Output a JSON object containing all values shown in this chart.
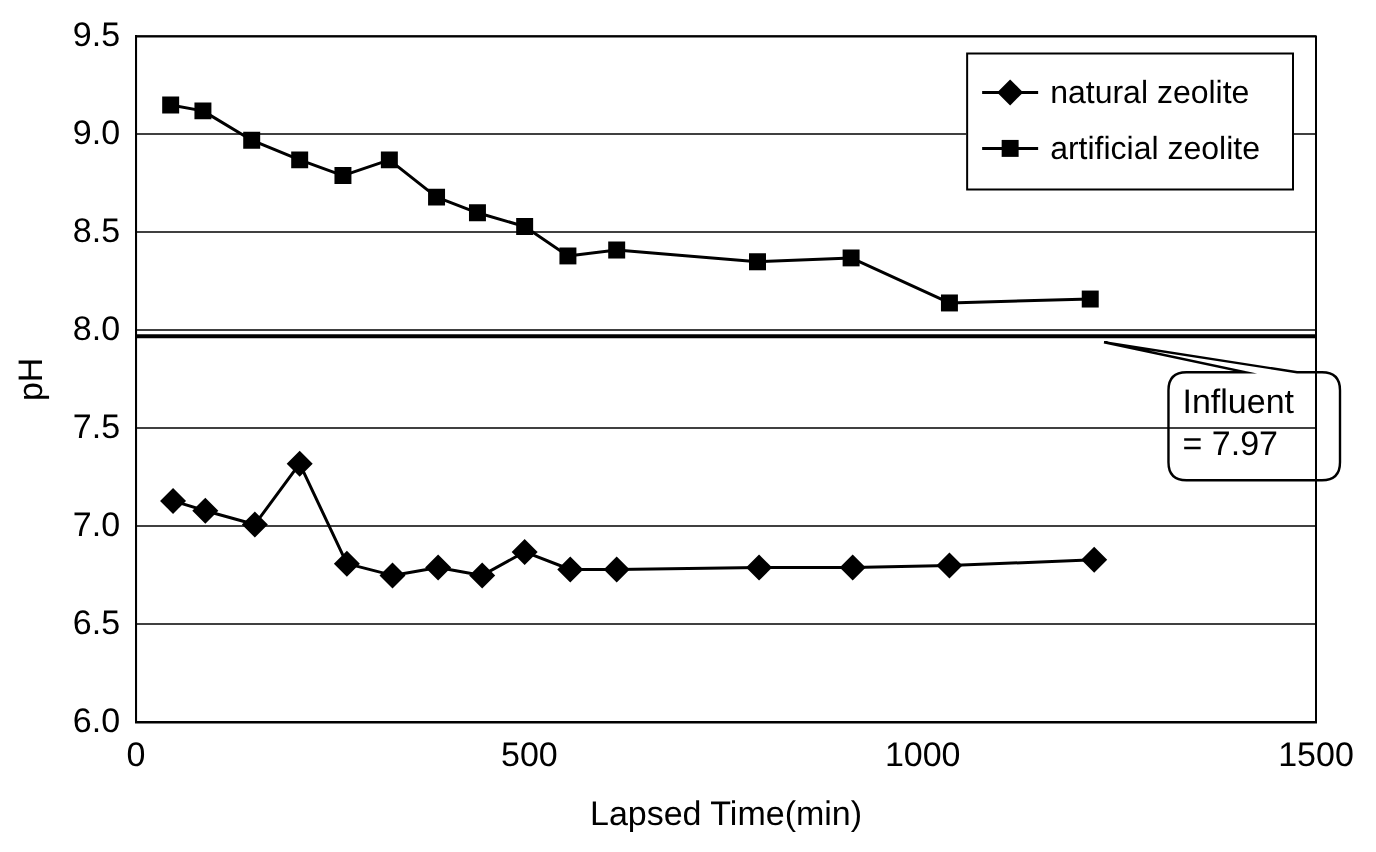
{
  "chart_data": {
    "type": "line",
    "xlabel": "Lapsed Time(min)",
    "ylabel": "pH",
    "xlim": [
      0,
      1500
    ],
    "xticks": [
      0,
      500,
      1000,
      1500
    ],
    "ylim": [
      6.0,
      9.5
    ],
    "yticks": [
      {
        "value": 6.0,
        "label": "6.0"
      },
      {
        "value": 6.5,
        "label": "6.5"
      },
      {
        "value": 7.0,
        "label": "7.0"
      },
      {
        "value": 7.5,
        "label": "7.5"
      },
      {
        "value": 8.0,
        "label": "8.0"
      },
      {
        "value": 8.5,
        "label": "8.5"
      },
      {
        "value": 9.0,
        "label": "9.0"
      },
      {
        "value": 9.5,
        "label": "9.5"
      }
    ],
    "grid": "y",
    "legend": "top right",
    "line_style": "solid",
    "series": [
      {
        "name": "natural zeolite",
        "color": "#000000",
        "marker": "diamond",
        "x": [
          47,
          88,
          151,
          208,
          268,
          326,
          384,
          440,
          494,
          552,
          611,
          792,
          911,
          1034,
          1218
        ],
        "values": [
          7.13,
          7.08,
          7.01,
          7.32,
          6.81,
          6.75,
          6.79,
          6.75,
          6.87,
          6.78,
          6.78,
          6.79,
          6.79,
          6.8,
          6.83
        ]
      },
      {
        "name": "artificial zeolite",
        "color": "#000000",
        "marker": "square",
        "x": [
          44,
          85,
          147,
          208,
          263,
          322,
          382,
          434,
          494,
          549,
          611,
          790,
          909,
          1034,
          1213
        ],
        "values": [
          9.15,
          9.12,
          8.97,
          8.87,
          8.79,
          8.87,
          8.68,
          8.6,
          8.53,
          8.38,
          8.41,
          8.35,
          8.37,
          8.14,
          8.16
        ]
      }
    ],
    "ref_lines": [
      {
        "axis": "y",
        "value": 7.97,
        "label": "Influent = 7.97",
        "color": "#000000",
        "line_style": "solid"
      }
    ]
  }
}
